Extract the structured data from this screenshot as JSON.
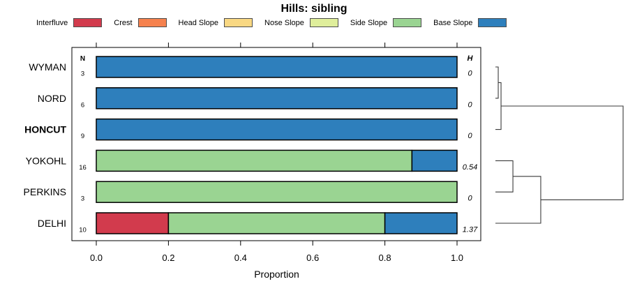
{
  "title": "Hills: sibling",
  "legend": {
    "items": [
      {
        "label": "Interfluve",
        "color": "#D23B4D"
      },
      {
        "label": "Crest",
        "color": "#F5814E"
      },
      {
        "label": "Head Slope",
        "color": "#F9D883"
      },
      {
        "label": "Nose Slope",
        "color": "#DFEE9B"
      },
      {
        "label": "Side Slope",
        "color": "#9AD492"
      },
      {
        "label": "Base Slope",
        "color": "#2E7FBC"
      }
    ]
  },
  "chart_data": {
    "type": "bar",
    "orientation": "horizontal",
    "stacked": true,
    "title": "Hills: sibling",
    "xlabel": "Proportion",
    "xlim": [
      0,
      1
    ],
    "x_ticks": [
      "0.0",
      "0.2",
      "0.4",
      "0.6",
      "0.8",
      "1.0"
    ],
    "x_tick_values": [
      0,
      0.2,
      0.4,
      0.6,
      0.8,
      1.0
    ],
    "grid": false,
    "categories": [
      "WYMAN",
      "NORD",
      "HONCUT",
      "YOKOHL",
      "PERKINS",
      "DELHI"
    ],
    "bold_category": "HONCUT",
    "n_column": {
      "header": "N",
      "values": [
        "3",
        "6",
        "9",
        "16",
        "3",
        "10"
      ]
    },
    "h_column": {
      "header": "H",
      "values": [
        "0",
        "0",
        "0",
        "0.54",
        "0",
        "1.37"
      ]
    },
    "series": [
      {
        "name": "Interfluve",
        "color": "#D23B4D",
        "values": [
          0,
          0,
          0,
          0,
          0,
          0.2
        ]
      },
      {
        "name": "Crest",
        "color": "#F5814E",
        "values": [
          0,
          0,
          0,
          0,
          0,
          0
        ]
      },
      {
        "name": "Head Slope",
        "color": "#F9D883",
        "values": [
          0,
          0,
          0,
          0,
          0,
          0
        ]
      },
      {
        "name": "Nose Slope",
        "color": "#DFEE9B",
        "values": [
          0,
          0,
          0,
          0,
          0,
          0
        ]
      },
      {
        "name": "Side Slope",
        "color": "#9AD492",
        "values": [
          0,
          0,
          0,
          0.875,
          1,
          0.6
        ]
      },
      {
        "name": "Base Slope",
        "color": "#2E7FBC",
        "values": [
          1,
          1,
          1,
          0.125,
          0,
          0.2
        ]
      }
    ],
    "dendrogram": {
      "position": "right",
      "merges": [
        {
          "children": [
            "WYMAN",
            "NORD"
          ],
          "relative_height": 0.022
        },
        {
          "children": [
            "merge0",
            "HONCUT"
          ],
          "relative_height": 0.044
        },
        {
          "children": [
            "YOKOHL",
            "PERKINS"
          ],
          "relative_height": 0.137
        },
        {
          "children": [
            "merge2",
            "DELHI"
          ],
          "relative_height": 0.355
        },
        {
          "children": [
            "merge1",
            "merge3"
          ],
          "relative_height": 1.0
        }
      ]
    }
  }
}
